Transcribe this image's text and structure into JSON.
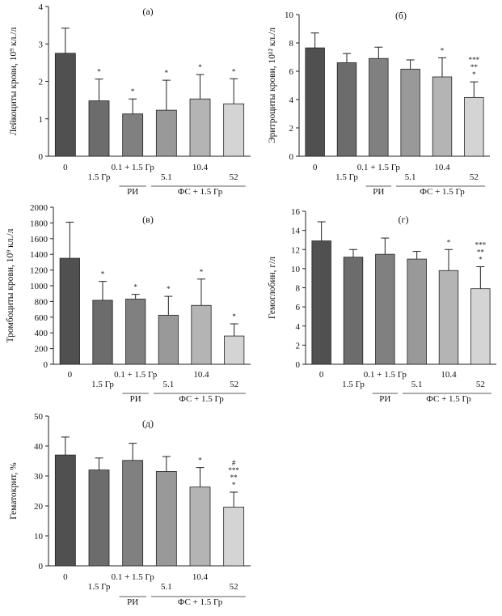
{
  "colors": [
    "#505050",
    "#6c6c6c",
    "#808080",
    "#999999",
    "#b4b4b4",
    "#d4d4d4"
  ],
  "categories": [
    "0",
    "1.5 Гр",
    "0.1 + 1.5 Гр",
    "5.1",
    "10.4",
    "52"
  ],
  "groups": {
    "ri": "РИ",
    "fs": "ФС + 1.5 Гр"
  },
  "chart_data": [
    {
      "type": "bar",
      "panel": "(а)",
      "ylabel": "Лейкоциты крови, 10⁹ кл./л",
      "ylim": [
        0,
        4
      ],
      "yticks": [
        "0",
        "1",
        "2",
        "3",
        "4"
      ],
      "categories": [
        "0",
        "1.5 Гр",
        "0.1 + 1.5 Гр",
        "5.1",
        "10.4",
        "52"
      ],
      "values": [
        2.75,
        1.48,
        1.13,
        1.23,
        1.53,
        1.4
      ],
      "errors": [
        0.67,
        0.58,
        0.4,
        0.8,
        0.65,
        0.67
      ],
      "annotations": [
        [],
        [
          "*"
        ],
        [
          "*"
        ],
        [
          "*"
        ],
        [
          "*"
        ],
        [
          "*"
        ]
      ]
    },
    {
      "type": "bar",
      "panel": "(б)",
      "ylabel": "Эритроциты крови, 10¹² кл./л",
      "ylim": [
        0,
        10
      ],
      "yticks": [
        "0",
        "2",
        "4",
        "6",
        "8",
        "10"
      ],
      "categories": [
        "0",
        "1.5 Гр",
        "0.1 + 1.5 Гр",
        "5.1",
        "10.4",
        "52"
      ],
      "values": [
        7.65,
        6.6,
        6.9,
        6.15,
        5.6,
        4.15
      ],
      "errors": [
        1.05,
        0.65,
        0.8,
        0.65,
        1.35,
        1.1
      ],
      "annotations": [
        [],
        [],
        [],
        [],
        [
          "*"
        ],
        [
          "***",
          "**",
          "*"
        ]
      ]
    },
    {
      "type": "bar",
      "panel": "(в)",
      "ylabel": "Тромбоциты крови, 10⁹ кл./л",
      "ylim": [
        0,
        2000
      ],
      "yticks": [
        "0",
        "200",
        "400",
        "600",
        "800",
        "1000",
        "1200",
        "1400",
        "1600",
        "1800",
        "2000"
      ],
      "categories": [
        "0",
        "1.5 Гр",
        "0.1 + 1.5 Гр",
        "5.1",
        "10.4",
        "52"
      ],
      "values": [
        1350,
        815,
        830,
        625,
        750,
        360
      ],
      "errors": [
        460,
        240,
        60,
        240,
        335,
        155
      ],
      "annotations": [
        [],
        [
          "*"
        ],
        [
          "*"
        ],
        [
          "*"
        ],
        [
          "*"
        ],
        [
          "*"
        ]
      ]
    },
    {
      "type": "bar",
      "panel": "(г)",
      "ylabel": "Гемоглобин, г/л",
      "ylim": [
        0,
        16
      ],
      "yticks": [
        "0",
        "2",
        "4",
        "6",
        "8",
        "10",
        "12",
        "14",
        "16"
      ],
      "categories": [
        "0",
        "1.5 Гр",
        "0.1 + 1.5 Гр",
        "5.1",
        "10.4",
        "52"
      ],
      "values": [
        12.9,
        11.2,
        11.5,
        11.0,
        9.8,
        7.9
      ],
      "errors": [
        2.0,
        0.8,
        1.7,
        0.8,
        2.2,
        2.3
      ],
      "annotations": [
        [],
        [],
        [],
        [],
        [
          "*"
        ],
        [
          "***",
          "**",
          "*"
        ]
      ]
    },
    {
      "type": "bar",
      "panel": "(д)",
      "ylabel": "Гематокрит, %",
      "ylim": [
        0,
        50
      ],
      "yticks": [
        "0",
        "10",
        "20",
        "30",
        "40",
        "50"
      ],
      "categories": [
        "0",
        "1.5 Гр",
        "0.1 + 1.5 Гр",
        "5.1",
        "10.4",
        "52"
      ],
      "values": [
        37,
        32,
        35.2,
        31.5,
        26.3,
        19.6
      ],
      "errors": [
        6.0,
        4.0,
        5.7,
        5.0,
        6.5,
        5.0
      ],
      "annotations": [
        [],
        [],
        [],
        [],
        [
          "*"
        ],
        [
          "#",
          "***",
          "**",
          "*"
        ]
      ]
    }
  ]
}
